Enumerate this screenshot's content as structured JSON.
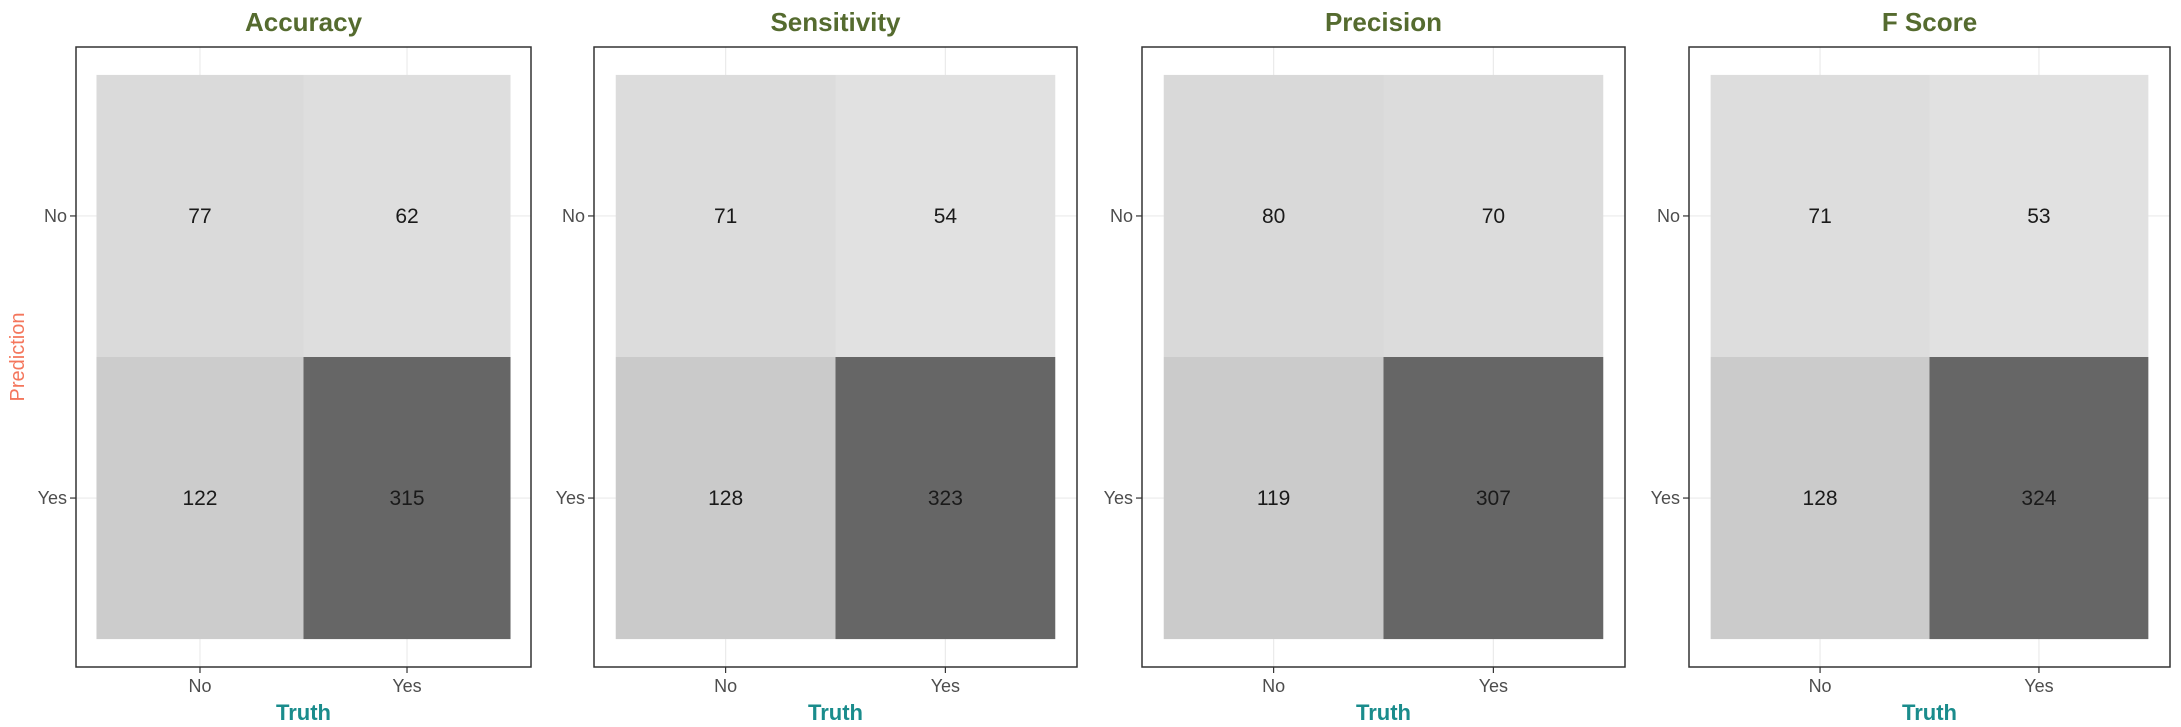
{
  "chart_data": [
    {
      "type": "heatmap",
      "title": "Accuracy",
      "xlabel": "Truth",
      "ylabel": "Prediction",
      "x_categories": [
        "No",
        "Yes"
      ],
      "y_categories": [
        "No",
        "Yes"
      ],
      "cells": [
        {
          "truth": "No",
          "prediction": "No",
          "value": 77
        },
        {
          "truth": "Yes",
          "prediction": "No",
          "value": 62
        },
        {
          "truth": "No",
          "prediction": "Yes",
          "value": 122
        },
        {
          "truth": "Yes",
          "prediction": "Yes",
          "value": 315
        }
      ]
    },
    {
      "type": "heatmap",
      "title": "Sensitivity",
      "xlabel": "Truth",
      "ylabel": "",
      "x_categories": [
        "No",
        "Yes"
      ],
      "y_categories": [
        "No",
        "Yes"
      ],
      "cells": [
        {
          "truth": "No",
          "prediction": "No",
          "value": 71
        },
        {
          "truth": "Yes",
          "prediction": "No",
          "value": 54
        },
        {
          "truth": "No",
          "prediction": "Yes",
          "value": 128
        },
        {
          "truth": "Yes",
          "prediction": "Yes",
          "value": 323
        }
      ]
    },
    {
      "type": "heatmap",
      "title": "Precision",
      "xlabel": "Truth",
      "ylabel": "",
      "x_categories": [
        "No",
        "Yes"
      ],
      "y_categories": [
        "No",
        "Yes"
      ],
      "cells": [
        {
          "truth": "No",
          "prediction": "No",
          "value": 80
        },
        {
          "truth": "Yes",
          "prediction": "No",
          "value": 70
        },
        {
          "truth": "No",
          "prediction": "Yes",
          "value": 119
        },
        {
          "truth": "Yes",
          "prediction": "Yes",
          "value": 307
        }
      ]
    },
    {
      "type": "heatmap",
      "title": "F Score",
      "xlabel": "Truth",
      "ylabel": "",
      "x_categories": [
        "No",
        "Yes"
      ],
      "y_categories": [
        "No",
        "Yes"
      ],
      "cells": [
        {
          "truth": "No",
          "prediction": "No",
          "value": 71
        },
        {
          "truth": "Yes",
          "prediction": "No",
          "value": 53
        },
        {
          "truth": "No",
          "prediction": "Yes",
          "value": 128
        },
        {
          "truth": "Yes",
          "prediction": "Yes",
          "value": 324
        }
      ]
    }
  ]
}
